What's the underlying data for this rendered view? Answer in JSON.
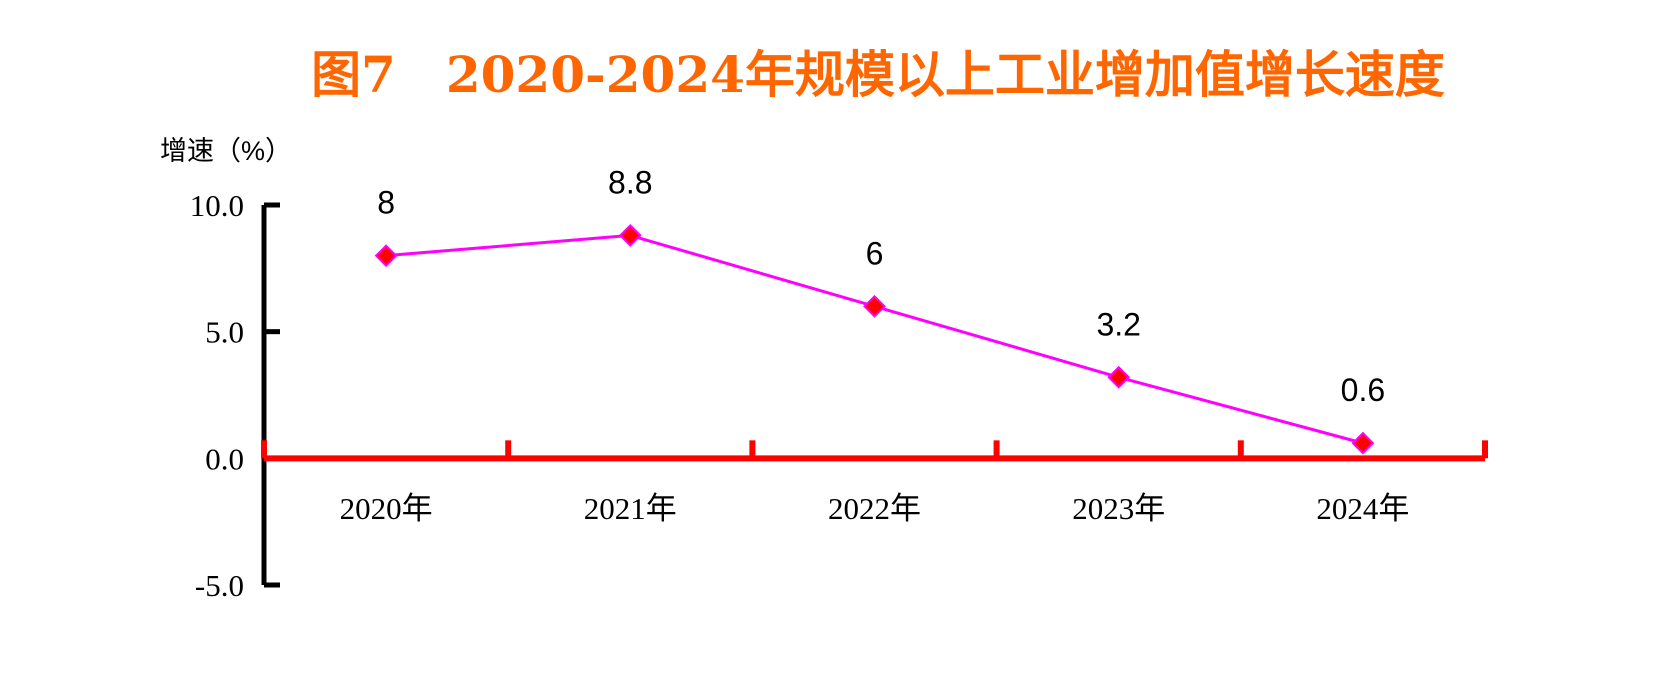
{
  "chart_data": {
    "type": "line",
    "title": "图7　2020-2024年规模以上工业增加值增长速度",
    "ylabel": "增速（%）",
    "xlabel": "",
    "categories": [
      "2020年",
      "2021年",
      "2022年",
      "2023年",
      "2024年"
    ],
    "series": [
      {
        "values": [
          8,
          8.8,
          6,
          3.2,
          0.6
        ],
        "color": "#ff00ff",
        "marker": "diamond",
        "marker_color": "#ff0000"
      }
    ],
    "data_labels": [
      "8",
      "8.8",
      "6",
      "3.2",
      "0.6"
    ],
    "yticks": [
      "10.0",
      "5.0",
      "0.0",
      "-5.0"
    ],
    "ytick_values": [
      10,
      5,
      0,
      -5
    ],
    "ylim": [
      -5,
      10
    ],
    "grid": false,
    "legend": "none",
    "colors": {
      "title": "#ff6600",
      "x_axis": "#ff0000",
      "y_axis": "#000000",
      "line": "#ff00ff",
      "marker": "#ff0000"
    }
  }
}
